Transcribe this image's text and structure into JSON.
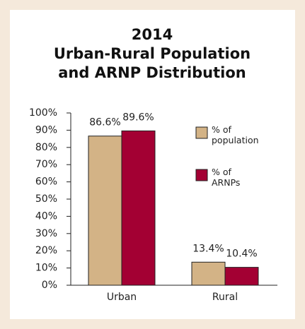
{
  "chart_data": {
    "type": "bar",
    "title": [
      "2014",
      "Urban-Rural Population",
      "and ARNP Distribution"
    ],
    "categories": [
      "Urban",
      "Rural"
    ],
    "series": [
      {
        "name": "% of population",
        "color": "#d3b386",
        "values": [
          86.6,
          13.4
        ],
        "value_labels": [
          "86.6%",
          "13.4%"
        ]
      },
      {
        "name": "% of ARNPs",
        "color": "#a30033",
        "values": [
          89.6,
          10.4
        ],
        "value_labels": [
          "89.6%",
          "10.4%"
        ]
      }
    ],
    "ylim": [
      0,
      100
    ],
    "yticks": [
      {
        "value": 0,
        "label": "0%"
      },
      {
        "value": 10,
        "label": "10%"
      },
      {
        "value": 20,
        "label": "20%"
      },
      {
        "value": 30,
        "label": "30%"
      },
      {
        "value": 40,
        "label": "40%"
      },
      {
        "value": 50,
        "label": "50%"
      },
      {
        "value": 60,
        "label": "60%"
      },
      {
        "value": 70,
        "label": "70%"
      },
      {
        "value": 80,
        "label": "80%"
      },
      {
        "value": 90,
        "label": "90%"
      },
      {
        "value": 100,
        "label": "100%"
      }
    ],
    "legend": "right"
  }
}
